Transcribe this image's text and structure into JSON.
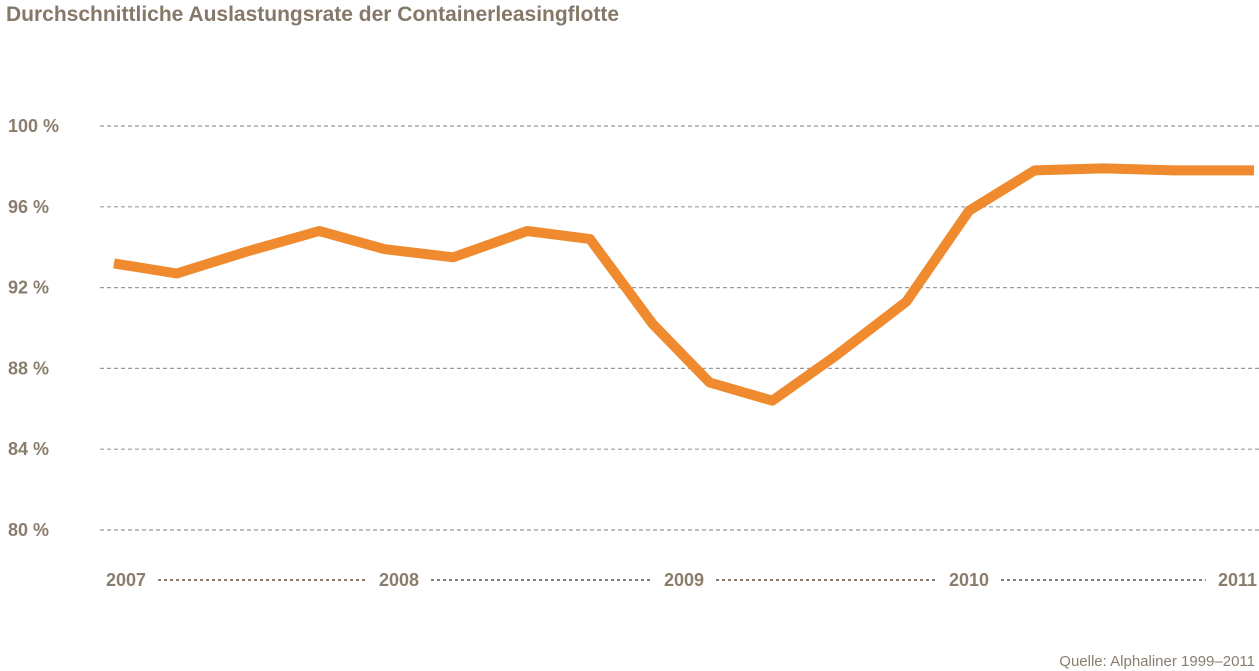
{
  "chart_data": {
    "type": "line",
    "title": "Durchschnittliche Auslastungsrate der Containerleasingflotte",
    "xlabel": "",
    "ylabel": "",
    "ylim": [
      80,
      100
    ],
    "yticks": [
      100,
      96,
      92,
      88,
      84,
      80
    ],
    "ytick_labels": [
      "100 %",
      "96 %",
      "92 %",
      "88 %",
      "84 %",
      "80 %"
    ],
    "xlim": [
      2007,
      2011
    ],
    "xtick_labels": [
      "2007",
      "2008",
      "2009",
      "2010",
      "2011"
    ],
    "xtick_values": [
      2007,
      2008,
      2009,
      2010,
      2011
    ],
    "grid": true,
    "source": "Quelle: Alphaliner 1999–2011",
    "colors": {
      "line": "#ef8a2f",
      "text": "#8a7d6d",
      "title": "#857868",
      "grid": "#9a9a9a"
    },
    "series": [
      {
        "x": [
          2007.0,
          2007.22,
          2007.47,
          2007.72,
          2007.95,
          2008.19,
          2008.45,
          2008.67,
          2008.89,
          2009.09,
          2009.31,
          2009.53,
          2009.78,
          2010.0,
          2010.23,
          2010.47,
          2010.72,
          2011.0
        ],
        "values": [
          93.2,
          92.7,
          93.8,
          94.8,
          93.9,
          93.5,
          94.8,
          94.4,
          90.2,
          87.3,
          86.4,
          88.6,
          91.3,
          95.8,
          97.8,
          97.9,
          97.8,
          97.8
        ]
      }
    ]
  }
}
